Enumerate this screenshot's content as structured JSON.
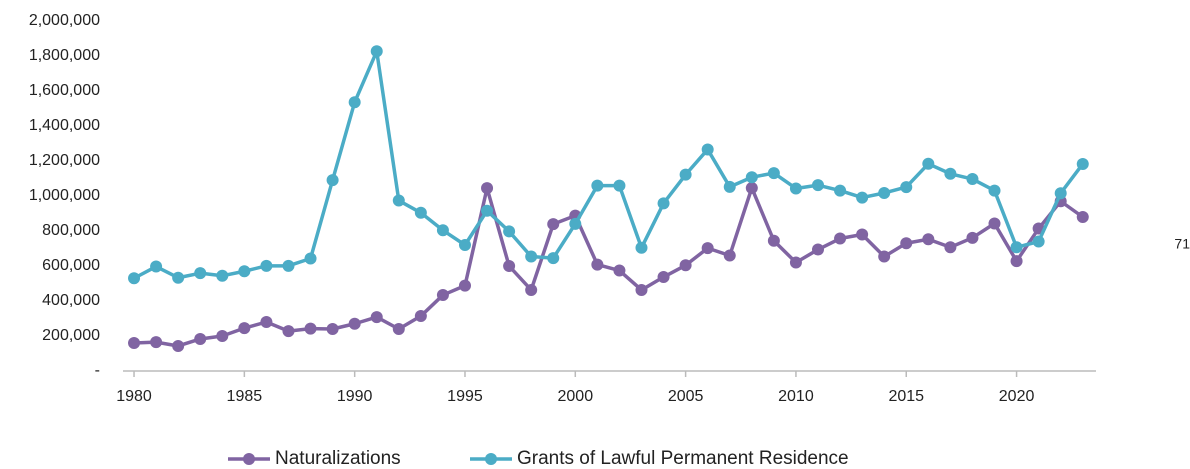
{
  "chart_data": {
    "type": "line",
    "x": [
      1980,
      1981,
      1982,
      1983,
      1984,
      1985,
      1986,
      1987,
      1988,
      1989,
      1990,
      1991,
      1992,
      1993,
      1994,
      1995,
      1996,
      1997,
      1998,
      1999,
      2000,
      2001,
      2002,
      2003,
      2004,
      2005,
      2006,
      2007,
      2008,
      2009,
      2010,
      2011,
      2012,
      2013,
      2014,
      2015,
      2016,
      2017,
      2018,
      2019,
      2020,
      2021,
      2022,
      2023
    ],
    "series": [
      {
        "name": "Naturalizations",
        "color": "#8064a2",
        "values": [
          160000,
          165000,
          143000,
          183000,
          200000,
          245000,
          280000,
          228000,
          242000,
          240000,
          270000,
          308000,
          240000,
          314000,
          434000,
          488000,
          1045000,
          600000,
          463000,
          839000,
          888000,
          608000,
          574000,
          463000,
          537000,
          604000,
          702000,
          660000,
          1046000,
          744000,
          620000,
          694000,
          757000,
          780000,
          654000,
          730000,
          753000,
          707000,
          761000,
          843000,
          628000,
          814000,
          970000,
          880000
        ]
      },
      {
        "name": "Grants of Lawful Permanent Residence",
        "color": "#4bacc6",
        "values": [
          530000,
          597000,
          533000,
          559000,
          544000,
          570000,
          601000,
          601000,
          643000,
          1091000,
          1536000,
          1827000,
          974000,
          904000,
          804000,
          720000,
          916000,
          798000,
          654000,
          645000,
          841000,
          1059000,
          1059000,
          704000,
          958000,
          1122000,
          1266000,
          1052000,
          1107000,
          1131000,
          1043000,
          1062000,
          1031000,
          991000,
          1017000,
          1051000,
          1184000,
          1127000,
          1097000,
          1031000,
          707000,
          740000,
          1016000,
          1183000
        ]
      }
    ],
    "xlim": [
      1979.5,
      2023.6
    ],
    "xticks": [
      1980,
      1985,
      1990,
      1995,
      2000,
      2005,
      2010,
      2015,
      2020
    ],
    "ylim": [
      0,
      2000000
    ],
    "yticks": [
      {
        "value": 0,
        "label": "-"
      },
      {
        "value": 200000,
        "label": "200,000"
      },
      {
        "value": 400000,
        "label": "400,000"
      },
      {
        "value": 600000,
        "label": "600,000"
      },
      {
        "value": 800000,
        "label": "800,000"
      },
      {
        "value": 1000000,
        "label": "1,000,000"
      },
      {
        "value": 1200000,
        "label": "1,200,000"
      },
      {
        "value": 1400000,
        "label": "1,400,000"
      },
      {
        "value": 1600000,
        "label": "1,600,000"
      },
      {
        "value": 1800000,
        "label": "1,800,000"
      },
      {
        "value": 2000000,
        "label": "2,000,000"
      }
    ],
    "grid": false,
    "legend": "bottom",
    "annotation": "71"
  }
}
